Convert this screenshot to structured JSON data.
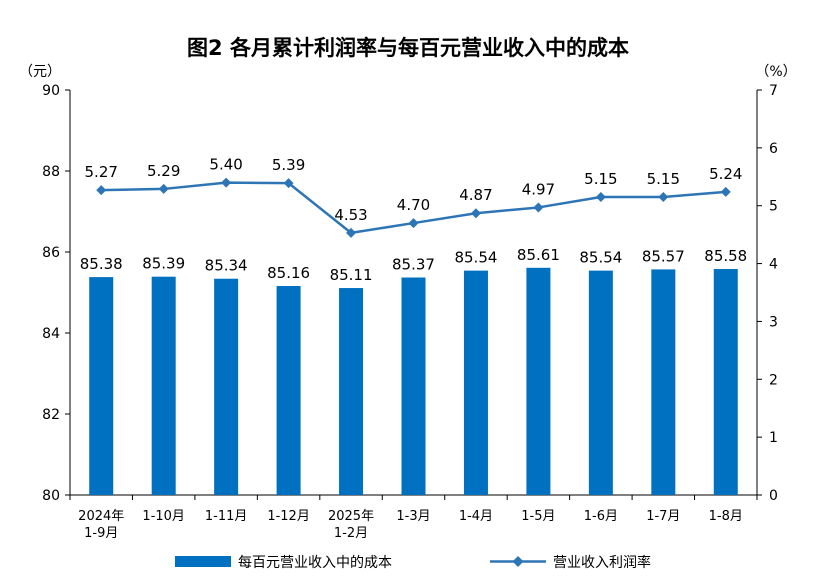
{
  "chart_data": {
    "type": "bar",
    "title": "图2 各月累计利润率与每百元营业收入中的成本",
    "categories": [
      [
        "2024年",
        "1-9月"
      ],
      [
        "1-10月"
      ],
      [
        "1-11月"
      ],
      [
        "1-12月"
      ],
      [
        "2025年",
        "1-2月"
      ],
      [
        "1-3月"
      ],
      [
        "1-4月"
      ],
      [
        "1-5月"
      ],
      [
        "1-6月"
      ],
      [
        "1-7月"
      ],
      [
        "1-8月"
      ]
    ],
    "series": [
      {
        "name": "每百元营业收入中的成本",
        "type": "bar",
        "axis": "left",
        "color": "#0070C0",
        "values": [
          85.38,
          85.39,
          85.34,
          85.16,
          85.11,
          85.37,
          85.54,
          85.61,
          85.54,
          85.57,
          85.58
        ]
      },
      {
        "name": "营业收入利润率",
        "type": "line",
        "axis": "right",
        "marker": "diamond",
        "color": "#2E75B6",
        "values": [
          5.27,
          5.29,
          5.4,
          5.39,
          4.53,
          4.7,
          4.87,
          4.97,
          5.15,
          5.15,
          5.24
        ]
      }
    ],
    "y_left": {
      "label": "（元）",
      "range": [
        80,
        90
      ],
      "ticks": [
        80,
        82,
        84,
        86,
        88,
        90
      ]
    },
    "y_right": {
      "label": "（%）",
      "range": [
        0,
        7
      ],
      "ticks": [
        0,
        1,
        2,
        3,
        4,
        5,
        6,
        7
      ]
    },
    "grid": false,
    "legend": "bottom"
  }
}
